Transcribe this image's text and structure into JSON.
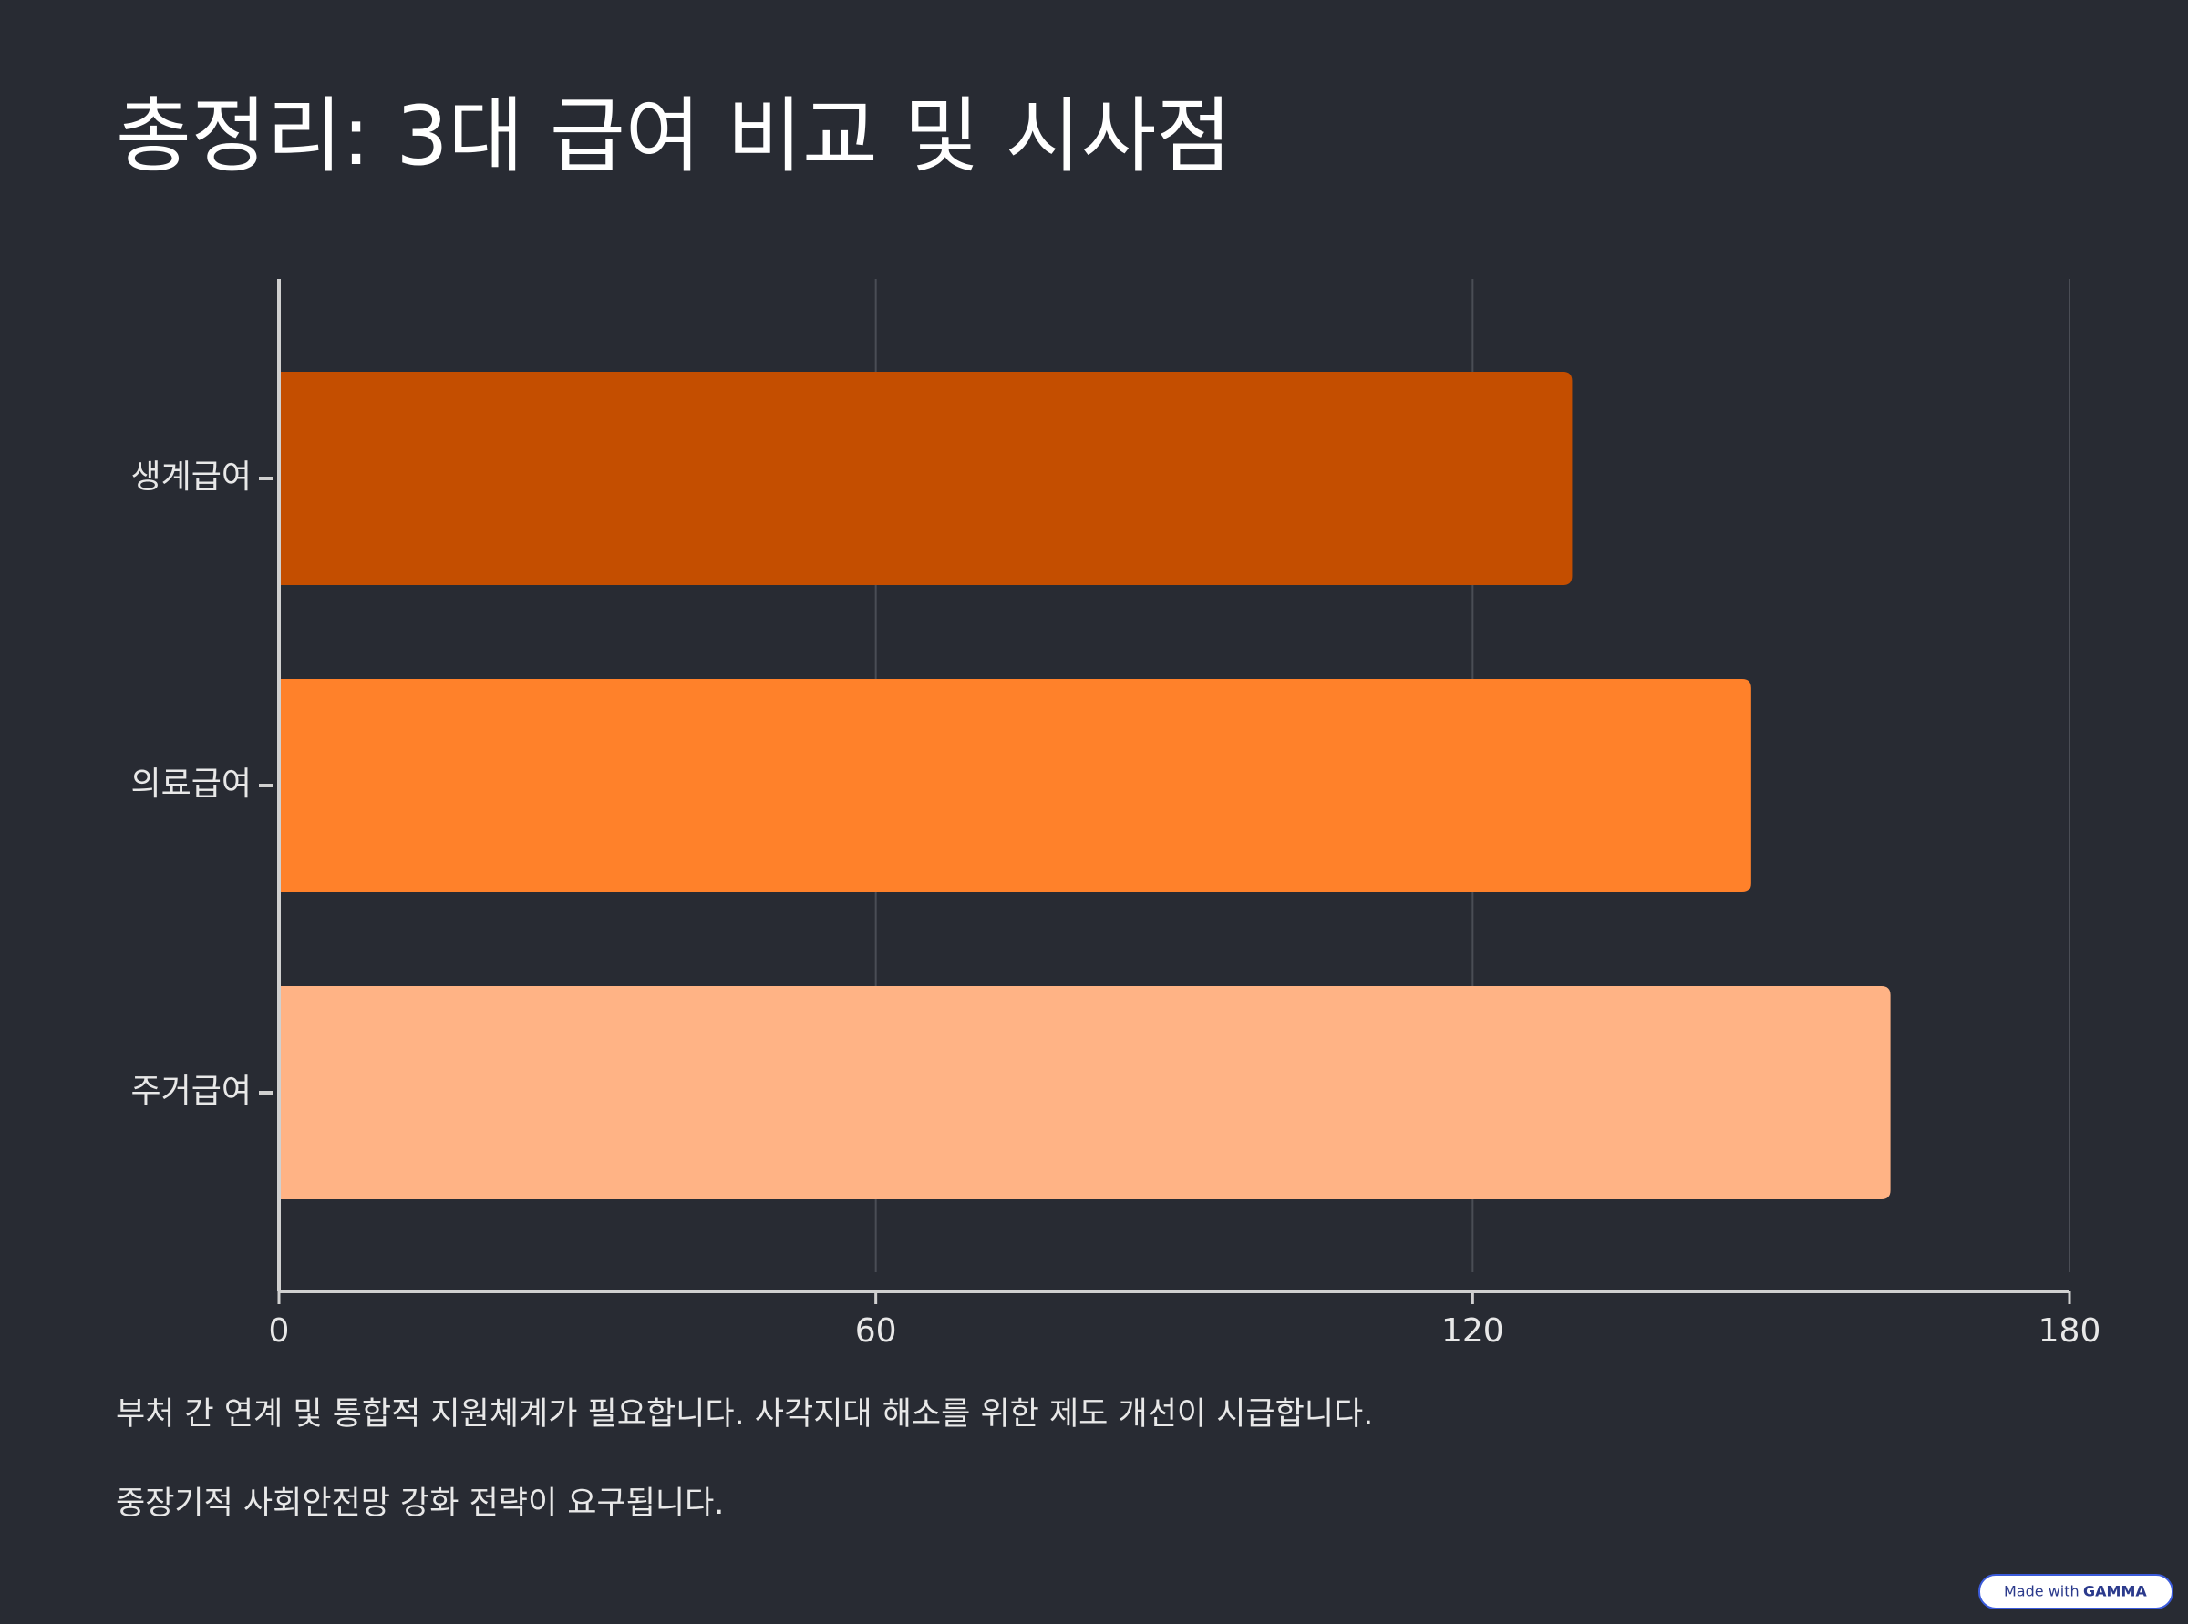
{
  "chart_data": {
    "type": "bar",
    "orientation": "horizontal",
    "title": "총정리: 3대 급여 비교 및 시사점",
    "categories": [
      "생계급여",
      "의료급여",
      "주거급여"
    ],
    "values": [
      130,
      148,
      162
    ],
    "colors": [
      "#c44e00",
      "#ff812a",
      "#ffb385"
    ],
    "xlim": [
      0,
      180
    ],
    "xticks": [
      0,
      60,
      120,
      180
    ],
    "grid": true,
    "annotations": [
      "부처 간 연계 및 통합적 지원체계가 필요합니다. 사각지대 해소를 위한 제도 개선이 시급합니다.",
      "중장기적 사회안전망 강화 전략이 요구됩니다."
    ]
  },
  "footer": {
    "badge_prefix": "Made with",
    "badge_brand": "GAMMA"
  }
}
